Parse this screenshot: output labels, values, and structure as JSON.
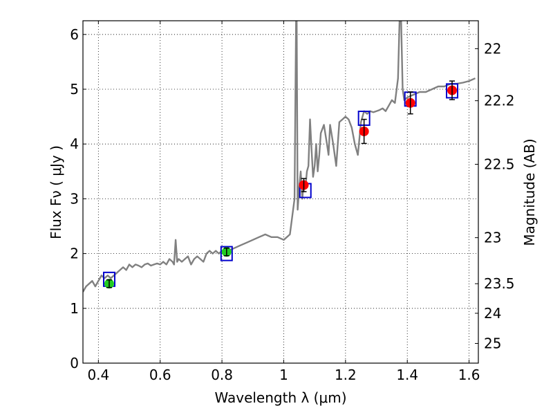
{
  "chart_data": {
    "type": "scatter",
    "xlabel": "Wavelength  λ (μm)",
    "ylabel": "Flux  Fν  ( μJy )",
    "y2label": "Magnitude (AB)",
    "xlim": [
      0.35,
      1.63
    ],
    "ylim": [
      0,
      6.25
    ],
    "grid": true,
    "x_ticks": [
      0.4,
      0.6,
      0.8,
      1.0,
      1.2,
      1.4,
      1.6
    ],
    "x_tick_labels": [
      "0.4",
      "0.6",
      "0.8",
      "1",
      "1.2",
      "1.4",
      "1.6"
    ],
    "y_ticks": [
      0,
      1,
      2,
      3,
      4,
      5,
      6
    ],
    "y_tick_labels": [
      "0",
      "1",
      "2",
      "3",
      "4",
      "5",
      "6"
    ],
    "mag_ticks": [
      {
        "flux": 5.74,
        "label": "22"
      },
      {
        "flux": 4.79,
        "label": "22.2"
      },
      {
        "flux": 3.63,
        "label": "22.5"
      },
      {
        "flux": 2.29,
        "label": "23"
      },
      {
        "flux": 1.45,
        "label": "23.5"
      },
      {
        "flux": 0.91,
        "label": "24"
      },
      {
        "flux": 0.36,
        "label": "25"
      }
    ],
    "series": [
      {
        "kind": "spectrum_line",
        "color": "#808080",
        "x": [
          0.35,
          0.36,
          0.37,
          0.38,
          0.39,
          0.4,
          0.41,
          0.42,
          0.43,
          0.44,
          0.45,
          0.46,
          0.47,
          0.48,
          0.49,
          0.5,
          0.51,
          0.52,
          0.53,
          0.54,
          0.55,
          0.56,
          0.57,
          0.58,
          0.59,
          0.6,
          0.61,
          0.62,
          0.63,
          0.64,
          0.645,
          0.65,
          0.655,
          0.66,
          0.67,
          0.68,
          0.69,
          0.7,
          0.71,
          0.72,
          0.73,
          0.74,
          0.75,
          0.76,
          0.77,
          0.78,
          0.79,
          0.8,
          0.81,
          0.82,
          0.84,
          0.86,
          0.88,
          0.9,
          0.92,
          0.94,
          0.96,
          0.98,
          1.0,
          1.02,
          1.035,
          1.04,
          1.042,
          1.045,
          1.05,
          1.055,
          1.06,
          1.065,
          1.07,
          1.075,
          1.08,
          1.085,
          1.09,
          1.095,
          1.1,
          1.105,
          1.11,
          1.115,
          1.12,
          1.13,
          1.14,
          1.145,
          1.15,
          1.16,
          1.17,
          1.18,
          1.19,
          1.2,
          1.21,
          1.22,
          1.23,
          1.24,
          1.25,
          1.26,
          1.27,
          1.28,
          1.29,
          1.3,
          1.31,
          1.32,
          1.33,
          1.34,
          1.35,
          1.36,
          1.37,
          1.375,
          1.38,
          1.385,
          1.39,
          1.4,
          1.42,
          1.44,
          1.46,
          1.48,
          1.5,
          1.52,
          1.54,
          1.56,
          1.58,
          1.6,
          1.62
        ],
        "y": [
          1.3,
          1.4,
          1.45,
          1.5,
          1.4,
          1.5,
          1.6,
          1.55,
          1.6,
          1.55,
          1.6,
          1.65,
          1.7,
          1.75,
          1.7,
          1.8,
          1.75,
          1.8,
          1.78,
          1.75,
          1.8,
          1.82,
          1.78,
          1.8,
          1.82,
          1.8,
          1.85,
          1.8,
          1.9,
          1.85,
          1.8,
          2.25,
          1.85,
          1.9,
          1.85,
          1.9,
          1.95,
          1.8,
          1.9,
          1.95,
          1.9,
          1.85,
          2.0,
          2.05,
          2.0,
          2.05,
          2.0,
          2.05,
          2.0,
          2.05,
          2.1,
          2.15,
          2.2,
          2.25,
          2.3,
          2.35,
          2.3,
          2.3,
          2.25,
          2.35,
          3.0,
          6.25,
          6.25,
          2.8,
          3.2,
          3.5,
          3.0,
          3.3,
          3.2,
          3.5,
          3.6,
          4.45,
          3.9,
          3.4,
          3.6,
          4.0,
          3.5,
          3.8,
          4.2,
          4.35,
          4.0,
          3.8,
          4.35,
          4.0,
          3.6,
          4.4,
          4.45,
          4.5,
          4.45,
          4.3,
          4.0,
          3.8,
          4.4,
          4.6,
          4.55,
          4.6,
          4.58,
          4.6,
          4.62,
          4.65,
          4.6,
          4.7,
          4.8,
          4.75,
          5.2,
          6.25,
          6.25,
          5.0,
          4.8,
          4.85,
          4.9,
          4.95,
          4.95,
          5.0,
          5.05,
          5.05,
          5.1,
          5.1,
          5.12,
          5.15,
          5.2
        ]
      },
      {
        "kind": "model_boxes",
        "color": "#0000cc",
        "x": [
          0.435,
          0.815,
          1.07,
          1.26,
          1.41,
          1.545
        ],
        "y": [
          1.53,
          2.0,
          3.15,
          4.47,
          4.82,
          4.97
        ]
      },
      {
        "kind": "measured_points",
        "color": "#ff0000",
        "x": [
          1.065,
          1.26,
          1.41,
          1.545
        ],
        "y": [
          3.25,
          4.23,
          4.75,
          4.98
        ],
        "err": [
          0.12,
          0.22,
          0.2,
          0.17
        ]
      },
      {
        "kind": "measured_points",
        "color": "#22cc22",
        "x": [
          0.435,
          0.815
        ],
        "y": [
          1.45,
          2.03
        ],
        "err": [
          0.07,
          0.07
        ]
      }
    ]
  }
}
